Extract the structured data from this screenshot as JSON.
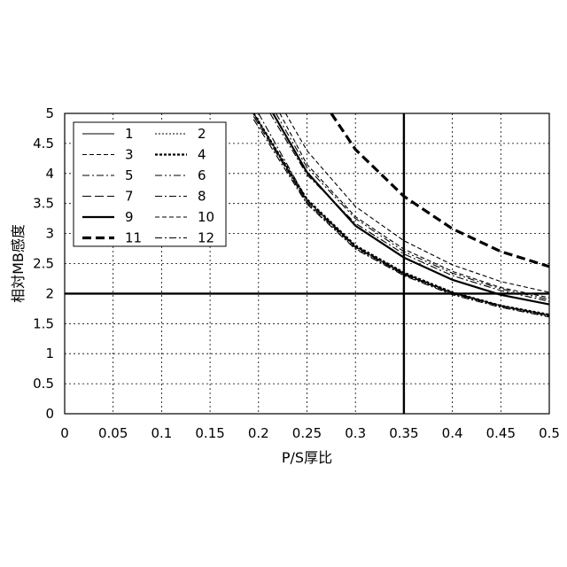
{
  "chart_data": {
    "type": "line",
    "xlabel": "P/S厚比",
    "ylabel": "相対MB感度",
    "xlim": [
      0,
      0.5
    ],
    "ylim": [
      0,
      5
    ],
    "x_ticks": [
      "0",
      "0.05",
      "0.1",
      "0.15",
      "0.2",
      "0.25",
      "0.3",
      "0.35",
      "0.4",
      "0.45",
      "0.5"
    ],
    "y_ticks": [
      "0",
      "0.5",
      "1",
      "1.5",
      "2",
      "2.5",
      "3",
      "3.5",
      "4",
      "4.5",
      "5"
    ],
    "grid": true,
    "legend_position": "top-left",
    "reference_lines": [
      {
        "axis": "y",
        "value": 2
      },
      {
        "axis": "x",
        "value": 0.35
      }
    ],
    "series": [
      {
        "name": "1",
        "style": "solid",
        "weight": "thin",
        "x": [
          0.195,
          0.25,
          0.3,
          0.35,
          0.4,
          0.45,
          0.5
        ],
        "y": [
          5.0,
          3.55,
          2.78,
          2.33,
          2.01,
          1.8,
          1.64
        ]
      },
      {
        "name": "2",
        "style": "dotted",
        "weight": "thin",
        "x": [
          0.195,
          0.25,
          0.3,
          0.35,
          0.4,
          0.45,
          0.5
        ],
        "y": [
          5.0,
          3.5,
          2.75,
          2.31,
          1.99,
          1.78,
          1.62
        ]
      },
      {
        "name": "3",
        "style": "dashed",
        "weight": "thin",
        "x": [
          0.228,
          0.25,
          0.3,
          0.35,
          0.4,
          0.45,
          0.5
        ],
        "y": [
          5.0,
          4.38,
          3.45,
          2.88,
          2.48,
          2.2,
          2.02
        ]
      },
      {
        "name": "4",
        "style": "dotted",
        "weight": "thick",
        "x": [
          0.195,
          0.25,
          0.3,
          0.35,
          0.4,
          0.45,
          0.5
        ],
        "y": [
          5.0,
          3.57,
          2.8,
          2.35,
          2.02,
          1.8,
          1.65
        ]
      },
      {
        "name": "5",
        "style": "dashdot",
        "weight": "thin",
        "x": [
          0.212,
          0.25,
          0.3,
          0.35,
          0.4,
          0.45,
          0.5
        ],
        "y": [
          5.0,
          3.98,
          3.17,
          2.66,
          2.3,
          2.05,
          1.87
        ]
      },
      {
        "name": "6",
        "style": "dashdotdot",
        "weight": "thin",
        "x": [
          0.218,
          0.25,
          0.3,
          0.35,
          0.4,
          0.45,
          0.5
        ],
        "y": [
          5.0,
          4.1,
          3.25,
          2.7,
          2.34,
          2.08,
          1.9
        ]
      },
      {
        "name": "7",
        "style": "longdash",
        "weight": "thin",
        "x": [
          0.195,
          0.25,
          0.3,
          0.35,
          0.4,
          0.45,
          0.5
        ],
        "y": [
          4.95,
          3.52,
          2.77,
          2.32,
          2.0,
          1.79,
          1.63
        ]
      },
      {
        "name": "8",
        "style": "dashdot",
        "weight": "thin",
        "x": [
          0.195,
          0.25,
          0.3,
          0.35,
          0.4,
          0.45,
          0.5
        ],
        "y": [
          4.9,
          3.49,
          2.74,
          2.3,
          1.98,
          1.77,
          1.61
        ]
      },
      {
        "name": "9",
        "style": "solid",
        "weight": "thick",
        "x": [
          0.215,
          0.25,
          0.3,
          0.35,
          0.4,
          0.45,
          0.5
        ],
        "y": [
          5.0,
          4.02,
          3.13,
          2.6,
          2.23,
          1.98,
          1.82
        ]
      },
      {
        "name": "10",
        "style": "dashed",
        "weight": "thin",
        "x": [
          0.222,
          0.25,
          0.3,
          0.35,
          0.4,
          0.45,
          0.5
        ],
        "y": [
          5.0,
          4.15,
          3.28,
          2.74,
          2.37,
          2.1,
          1.93
        ]
      },
      {
        "name": "11",
        "style": "dashed",
        "weight": "heavy",
        "x": [
          0.275,
          0.3,
          0.35,
          0.4,
          0.45,
          0.5
        ],
        "y": [
          5.0,
          4.4,
          3.62,
          3.08,
          2.7,
          2.45
        ]
      },
      {
        "name": "12",
        "style": "dashdot",
        "weight": "thin",
        "x": [
          0.2,
          0.25,
          0.3,
          0.35,
          0.4,
          0.45,
          0.5
        ],
        "y": [
          5.0,
          3.56,
          2.79,
          2.34,
          2.02,
          1.8,
          1.64
        ]
      }
    ]
  }
}
